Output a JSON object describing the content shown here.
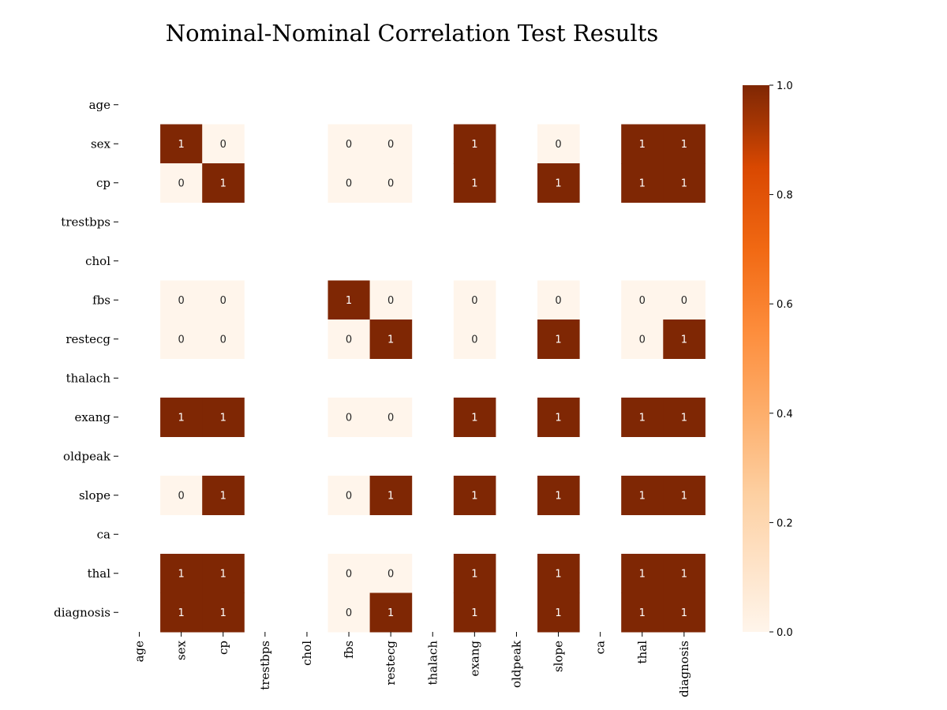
{
  "chart_data": {
    "type": "heatmap",
    "title": "Nominal-Nominal Correlation Test Results",
    "x_labels": [
      "age",
      "sex",
      "cp",
      "trestbps",
      "chol",
      "fbs",
      "restecg",
      "thalach",
      "exang",
      "oldpeak",
      "slope",
      "ca",
      "thal",
      "diagnosis"
    ],
    "y_labels": [
      "age",
      "sex",
      "cp",
      "trestbps",
      "chol",
      "fbs",
      "restecg",
      "thalach",
      "exang",
      "oldpeak",
      "slope",
      "ca",
      "thal",
      "diagnosis"
    ],
    "values": [
      [
        null,
        null,
        null,
        null,
        null,
        null,
        null,
        null,
        null,
        null,
        null,
        null,
        null,
        null
      ],
      [
        null,
        1,
        0,
        null,
        null,
        0,
        0,
        null,
        1,
        null,
        0,
        null,
        1,
        1
      ],
      [
        null,
        0,
        1,
        null,
        null,
        0,
        0,
        null,
        1,
        null,
        1,
        null,
        1,
        1
      ],
      [
        null,
        null,
        null,
        null,
        null,
        null,
        null,
        null,
        null,
        null,
        null,
        null,
        null,
        null
      ],
      [
        null,
        null,
        null,
        null,
        null,
        null,
        null,
        null,
        null,
        null,
        null,
        null,
        null,
        null
      ],
      [
        null,
        0,
        0,
        null,
        null,
        1,
        0,
        null,
        0,
        null,
        0,
        null,
        0,
        0
      ],
      [
        null,
        0,
        0,
        null,
        null,
        0,
        1,
        null,
        0,
        null,
        1,
        null,
        0,
        1
      ],
      [
        null,
        null,
        null,
        null,
        null,
        null,
        null,
        null,
        null,
        null,
        null,
        null,
        null,
        null
      ],
      [
        null,
        1,
        1,
        null,
        null,
        0,
        0,
        null,
        1,
        null,
        1,
        null,
        1,
        1
      ],
      [
        null,
        null,
        null,
        null,
        null,
        null,
        null,
        null,
        null,
        null,
        null,
        null,
        null,
        null
      ],
      [
        null,
        0,
        1,
        null,
        null,
        0,
        1,
        null,
        1,
        null,
        1,
        null,
        1,
        1
      ],
      [
        null,
        null,
        null,
        null,
        null,
        null,
        null,
        null,
        null,
        null,
        null,
        null,
        null,
        null
      ],
      [
        null,
        1,
        1,
        null,
        null,
        0,
        0,
        null,
        1,
        null,
        1,
        null,
        1,
        1
      ],
      [
        null,
        1,
        1,
        null,
        null,
        0,
        1,
        null,
        1,
        null,
        1,
        null,
        1,
        1
      ]
    ],
    "colormap": "Oranges",
    "color_low": "#fff5eb",
    "color_high": "#7f2704",
    "colorbar_range": [
      0,
      1
    ],
    "colorbar_ticks": [
      "0.0",
      "0.2",
      "0.4",
      "0.6",
      "0.8",
      "1.0"
    ],
    "annotations": true,
    "legend": "colorbar-right"
  }
}
